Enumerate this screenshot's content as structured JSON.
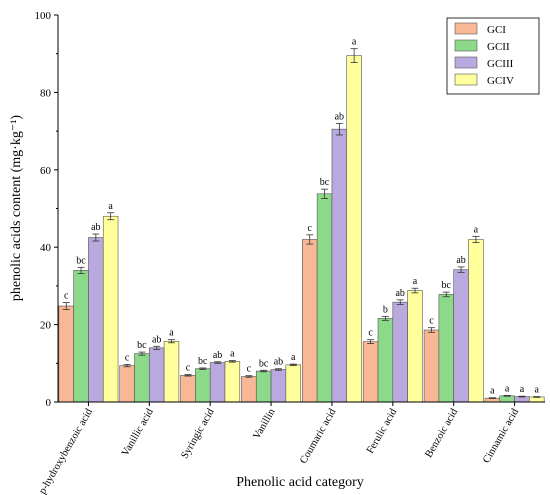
{
  "chart_data": {
    "type": "bar",
    "title": "",
    "xlabel": "Phenolic acid category",
    "ylabel": "phenolic acids content (mg·kg⁻¹)",
    "ylim": [
      0,
      100
    ],
    "yticks": [
      0,
      20,
      40,
      60,
      80,
      100
    ],
    "legend_position": "top-right",
    "grid": false,
    "categories": [
      "p-hydroxybenzoic acid",
      "Vanillic acid",
      "Syringic acid",
      "Vanillin",
      "Coumaric acid",
      "Ferulic acid",
      "Benzoic acid",
      "Cinnamic acid"
    ],
    "series": [
      {
        "name": "GCI",
        "color": "#F9B895",
        "values": [
          24.8,
          9.4,
          6.9,
          6.6,
          42.0,
          15.6,
          18.6,
          1.0
        ],
        "errors": [
          0.9,
          0.3,
          0.2,
          0.2,
          1.2,
          0.5,
          0.6,
          0.1
        ],
        "letters": [
          "c",
          "c",
          "c",
          "c",
          "c",
          "c",
          "c",
          "a"
        ]
      },
      {
        "name": "GCII",
        "color": "#8DD98A",
        "values": [
          34.0,
          12.5,
          8.6,
          8.0,
          53.8,
          21.6,
          27.8,
          1.6
        ],
        "errors": [
          0.8,
          0.4,
          0.2,
          0.2,
          1.2,
          0.5,
          0.6,
          0.1
        ],
        "letters": [
          "bc",
          "bc",
          "bc",
          "bc",
          "bc",
          "b",
          "bc",
          "a"
        ]
      },
      {
        "name": "GCIII",
        "color": "#B9A9DE",
        "values": [
          42.5,
          14.0,
          10.2,
          8.4,
          70.5,
          25.8,
          34.2,
          1.4
        ],
        "errors": [
          0.9,
          0.4,
          0.2,
          0.2,
          1.5,
          0.6,
          0.7,
          0.1
        ],
        "letters": [
          "ab",
          "ab",
          "ab",
          "ab",
          "ab",
          "ab",
          "ab",
          "a"
        ]
      },
      {
        "name": "GCIV",
        "color": "#FFFF9B",
        "values": [
          48.0,
          15.7,
          10.5,
          9.6,
          89.5,
          28.8,
          42.0,
          1.3
        ],
        "errors": [
          0.9,
          0.4,
          0.2,
          0.2,
          1.8,
          0.6,
          0.8,
          0.1
        ],
        "letters": [
          "a",
          "a",
          "a",
          "a",
          "a",
          "a",
          "a",
          "a"
        ]
      }
    ]
  }
}
